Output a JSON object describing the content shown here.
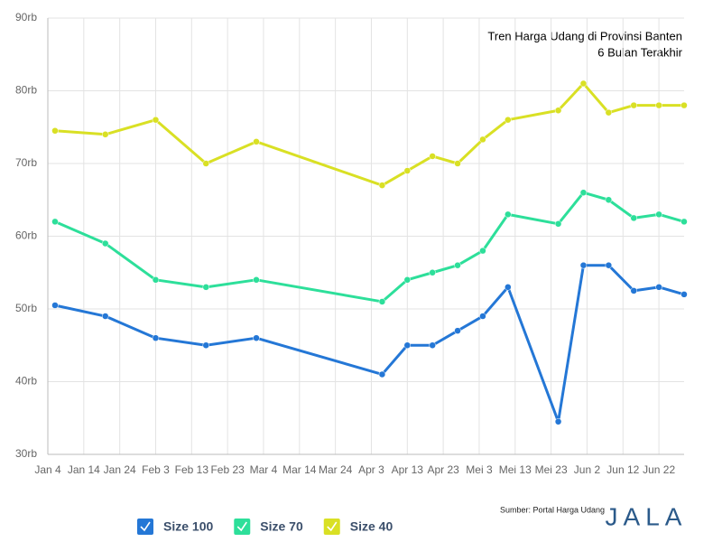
{
  "chart_data": {
    "type": "line",
    "title": "Tren Harga Udang di Provinsi Banten",
    "subtitle": "6 Bulan Terakhir",
    "source": "Sumber: Portal Harga Udang",
    "logo": "JALA",
    "x": [
      2,
      16,
      30,
      44,
      58,
      93,
      100,
      107,
      114,
      121,
      128,
      142,
      149,
      156,
      163,
      170,
      177
    ],
    "xlim": [
      0,
      177
    ],
    "xticks": [
      {
        "value": 0,
        "label": "Jan 4"
      },
      {
        "value": 10,
        "label": "Jan 14"
      },
      {
        "value": 20,
        "label": "Jan 24"
      },
      {
        "value": 30,
        "label": "Feb 3"
      },
      {
        "value": 40,
        "label": "Feb 13"
      },
      {
        "value": 50,
        "label": "Feb 23"
      },
      {
        "value": 60,
        "label": "Mar 4"
      },
      {
        "value": 70,
        "label": "Mar 14"
      },
      {
        "value": 80,
        "label": "Mar 24"
      },
      {
        "value": 90,
        "label": "Apr 3"
      },
      {
        "value": 100,
        "label": "Apr 13"
      },
      {
        "value": 110,
        "label": "Apr 23"
      },
      {
        "value": 120,
        "label": "Mei 3"
      },
      {
        "value": 130,
        "label": "Mei 13"
      },
      {
        "value": 140,
        "label": "Mei 23"
      },
      {
        "value": 150,
        "label": "Jun 2"
      },
      {
        "value": 160,
        "label": "Jun 12"
      },
      {
        "value": 170,
        "label": "Jun 22"
      }
    ],
    "ylim": [
      30,
      90
    ],
    "yticks": [
      {
        "value": 30,
        "label": "30rb"
      },
      {
        "value": 40,
        "label": "40rb"
      },
      {
        "value": 50,
        "label": "50rb"
      },
      {
        "value": 60,
        "label": "60rb"
      },
      {
        "value": 70,
        "label": "70rb"
      },
      {
        "value": 80,
        "label": "80rb"
      },
      {
        "value": 90,
        "label": "90rb"
      }
    ],
    "grid": true,
    "series": [
      {
        "name": "Size 100",
        "color": "#2477d6",
        "values": [
          50.5,
          49,
          46,
          45,
          46,
          41,
          45,
          45,
          47,
          49,
          53,
          34.5,
          56,
          56,
          52.5,
          53,
          52
        ]
      },
      {
        "name": "Size 70",
        "color": "#2ddf9a",
        "values": [
          62,
          59,
          54,
          53,
          54,
          51,
          54,
          55,
          56,
          58,
          63,
          61.7,
          66,
          65,
          62.5,
          63,
          62
        ]
      },
      {
        "name": "Size 40",
        "color": "#d9e024",
        "values": [
          74.5,
          74,
          76,
          70,
          73,
          67,
          69,
          71,
          70,
          73.3,
          76,
          77.3,
          81,
          77,
          78,
          78,
          78
        ]
      }
    ]
  }
}
